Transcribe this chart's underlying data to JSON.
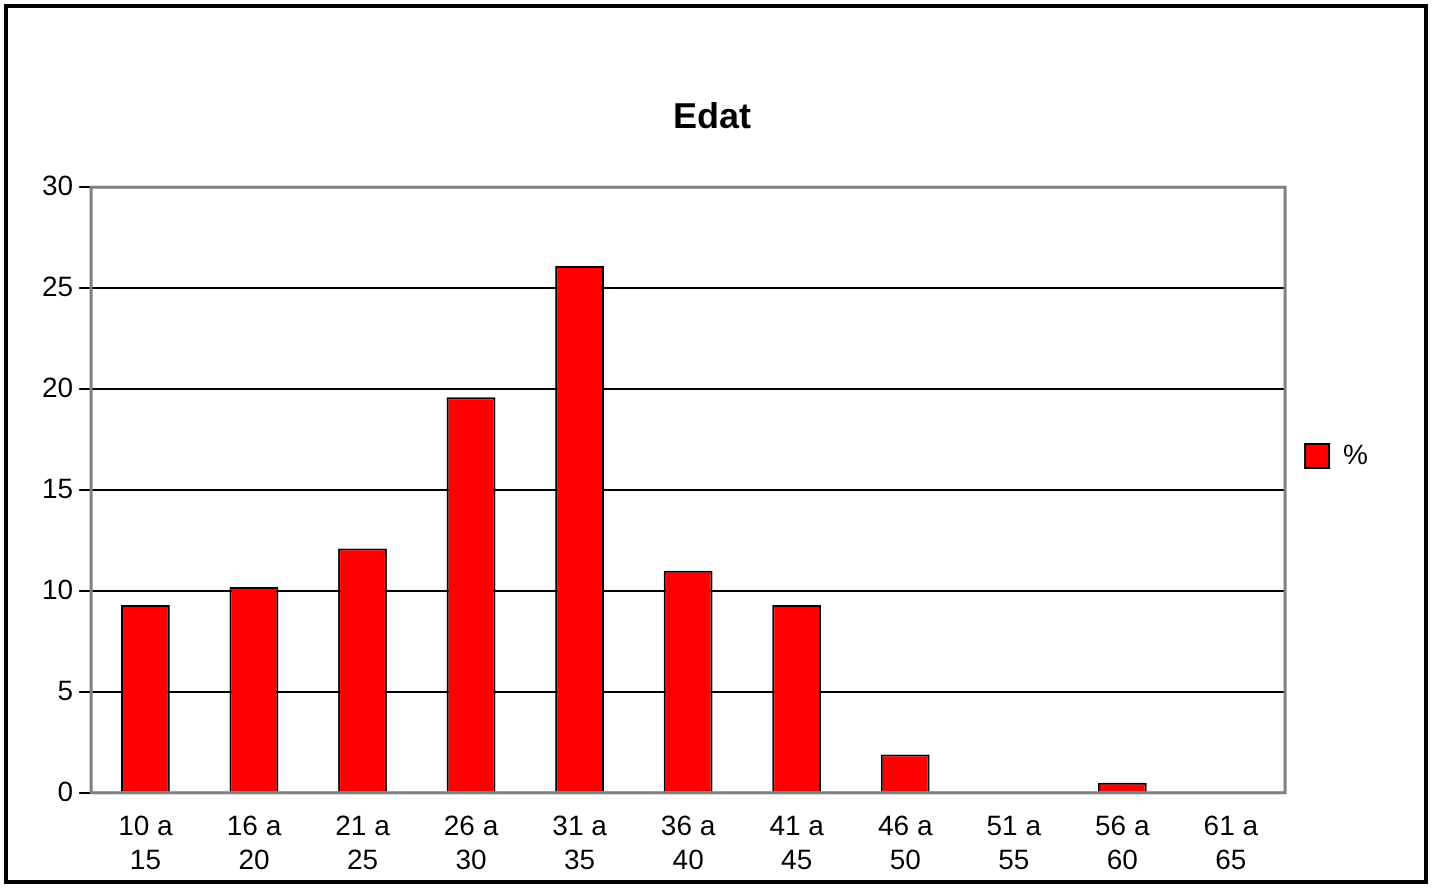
{
  "chart_data": {
    "type": "bar",
    "title": "Edat",
    "categories": [
      "10 a 15",
      "16 a 20",
      "21 a 25",
      "26 a 30",
      "31 a 35",
      "36 a 40",
      "41 a 45",
      "46 a 50",
      "51 a 55",
      "56 a 60",
      "61 a 65"
    ],
    "series": [
      {
        "name": "%",
        "color": "#ff0000",
        "values": [
          9.3,
          10.2,
          12.1,
          19.6,
          26.1,
          11.0,
          9.3,
          1.9,
          0,
          0.5,
          0
        ]
      }
    ],
    "ylim": [
      0,
      30
    ],
    "yticks": [
      0,
      5,
      10,
      15,
      20,
      25,
      30
    ],
    "grid": "y",
    "legend": "right"
  }
}
